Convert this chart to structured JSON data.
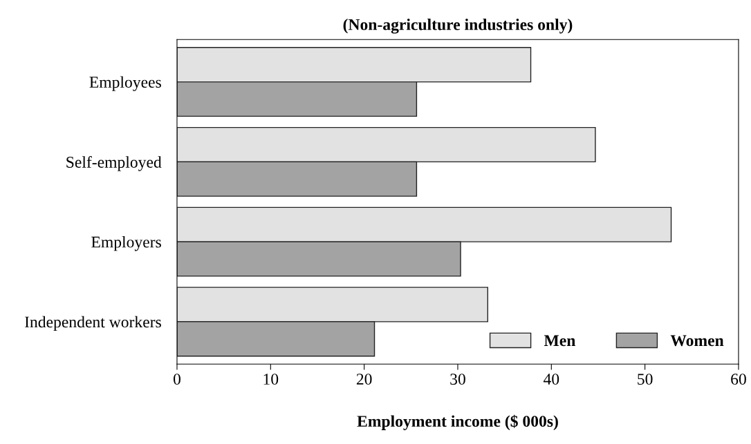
{
  "chart_data": {
    "type": "bar",
    "orientation": "horizontal",
    "title": "(Non-agriculture industries only)",
    "xlabel": "Employment income ($ 000s)",
    "categories": [
      "Employees",
      "Self-employed",
      "Employers",
      "Independent workers"
    ],
    "series": [
      {
        "name": "Men",
        "color": "#e2e2e2",
        "values": [
          37.8,
          44.7,
          52.8,
          33.2
        ]
      },
      {
        "name": "Women",
        "color": "#a3a3a3",
        "values": [
          25.6,
          25.6,
          30.3,
          21.1
        ]
      }
    ],
    "xlim": [
      0,
      60
    ],
    "xticks": [
      0,
      10,
      20,
      30,
      40,
      50,
      60
    ],
    "grid": false,
    "legend": "bottom right"
  }
}
